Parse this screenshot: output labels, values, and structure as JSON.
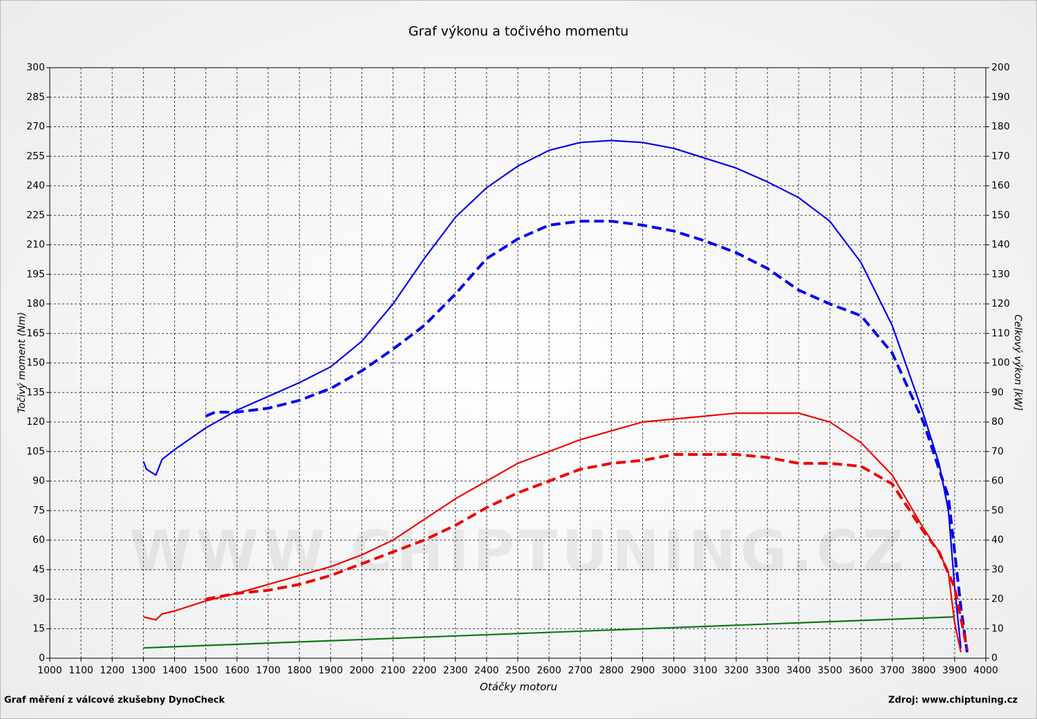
{
  "chart_data": {
    "type": "line",
    "title": "Graf výkonu a točivého momentu",
    "xlabel": "Otáčky motoru",
    "ylabel": "Točivý moment (Nm)",
    "y2label": "Celkový výkon [kW]",
    "footer_left": "Graf měření z válcové zkušebny DynoCheck",
    "footer_right": "Zdroj: www.chiptuning.cz",
    "watermark": "WWW.CHIPTUNING.CZ",
    "grid": true,
    "xlim": [
      1000,
      4000
    ],
    "xticks": [
      1000,
      1100,
      1200,
      1300,
      1400,
      1500,
      1600,
      1700,
      1800,
      1900,
      2000,
      2100,
      2200,
      2300,
      2400,
      2500,
      2600,
      2700,
      2800,
      2900,
      3000,
      3100,
      3200,
      3300,
      3400,
      3500,
      3600,
      3700,
      3800,
      3900,
      4000
    ],
    "ylim": [
      0,
      300
    ],
    "yticks": [
      0,
      15,
      30,
      45,
      60,
      75,
      90,
      105,
      120,
      135,
      150,
      165,
      180,
      195,
      210,
      225,
      240,
      255,
      270,
      285,
      300
    ],
    "y2lim": [
      0,
      200
    ],
    "y2ticks": [
      0,
      10,
      20,
      30,
      40,
      50,
      60,
      70,
      80,
      90,
      100,
      110,
      120,
      130,
      140,
      150,
      160,
      170,
      180,
      190,
      200
    ],
    "series": [
      {
        "color": "#0000ee",
        "dashed": false,
        "axis": "y",
        "x": [
          1300,
          1310,
          1340,
          1360,
          1400,
          1500,
          1600,
          1800,
          1900,
          2000,
          2100,
          2200,
          2300,
          2400,
          2500,
          2600,
          2700,
          2800,
          2900,
          3000,
          3100,
          3200,
          3300,
          3400,
          3500,
          3600,
          3700,
          3800,
          3850,
          3880,
          3900,
          3920
        ],
        "values": [
          100,
          96,
          93,
          101,
          106,
          117,
          126,
          140,
          148,
          161,
          180,
          203,
          224,
          239,
          250,
          258,
          262,
          263,
          262,
          259,
          254,
          249,
          242,
          234,
          222,
          201,
          169,
          124,
          99,
          75,
          36,
          5
        ]
      },
      {
        "color": "#0000ee",
        "dashed": true,
        "axis": "y",
        "x": [
          1500,
          1530,
          1600,
          1700,
          1800,
          1900,
          2000,
          2100,
          2200,
          2300,
          2400,
          2500,
          2600,
          2700,
          2800,
          2900,
          3000,
          3100,
          3200,
          3300,
          3400,
          3500,
          3600,
          3700,
          3800,
          3850,
          3880,
          3900,
          3920,
          3940
        ],
        "values": [
          123,
          125,
          125,
          127,
          131,
          137,
          146,
          157,
          169,
          185,
          203,
          213,
          220,
          222,
          222,
          220,
          217,
          212,
          206,
          198,
          187,
          180,
          174,
          155,
          120,
          96,
          82,
          54,
          26,
          3
        ]
      },
      {
        "color": "#ee0000",
        "dashed": false,
        "axis": "y2",
        "x": [
          1300,
          1340,
          1360,
          1400,
          1500,
          1600,
          1700,
          1800,
          1900,
          2000,
          2100,
          2200,
          2300,
          2400,
          2500,
          2600,
          2700,
          2800,
          2900,
          3000,
          3100,
          3200,
          3300,
          3400,
          3500,
          3600,
          3700,
          3800,
          3850,
          3880,
          3900,
          3920
        ],
        "values": [
          14,
          13,
          15,
          16,
          19.4,
          22,
          25,
          28,
          31,
          35,
          40,
          47,
          54,
          60,
          66,
          70,
          74,
          77,
          80,
          81,
          82,
          83,
          83,
          83,
          80,
          73,
          62,
          44,
          36,
          29,
          12,
          2
        ]
      },
      {
        "color": "#ee0000",
        "dashed": true,
        "axis": "y2",
        "x": [
          1500,
          1600,
          1700,
          1800,
          1900,
          2000,
          2100,
          2200,
          2300,
          2400,
          2500,
          2600,
          2700,
          2800,
          2900,
          3000,
          3100,
          3200,
          3300,
          3400,
          3500,
          3600,
          3700,
          3800,
          3850,
          3900,
          3940
        ],
        "values": [
          20,
          22,
          23,
          25,
          28,
          32,
          36,
          40,
          45,
          51,
          56,
          60,
          64,
          66,
          67,
          69,
          69,
          69,
          68,
          66,
          66,
          65,
          59,
          43,
          36,
          24,
          3
        ]
      },
      {
        "color": "#117711",
        "dashed": false,
        "axis": "y2",
        "x": [
          1300,
          3900
        ],
        "values": [
          3.5,
          14
        ]
      }
    ]
  }
}
